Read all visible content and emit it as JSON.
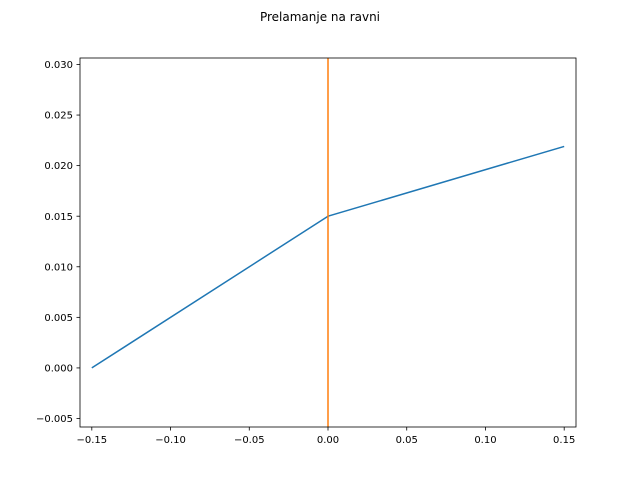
{
  "chart_data": {
    "type": "line",
    "title": "Prelamanje na ravni",
    "xlabel": "",
    "ylabel": "",
    "xlim": [
      -0.1575,
      0.1575
    ],
    "ylim": [
      -0.00584,
      0.03064
    ],
    "x_ticks": [
      -0.15,
      -0.1,
      -0.05,
      0.0,
      0.05,
      0.1,
      0.15
    ],
    "x_tick_labels": [
      "−0.15",
      "−0.10",
      "−0.05",
      "0.00",
      "0.05",
      "0.10",
      "0.15"
    ],
    "y_ticks": [
      -0.005,
      0.0,
      0.005,
      0.01,
      0.015,
      0.02,
      0.025,
      0.03
    ],
    "y_tick_labels": [
      "−0.005",
      "0.000",
      "0.005",
      "0.010",
      "0.015",
      "0.020",
      "0.025",
      "0.030"
    ],
    "grid": false,
    "legend": "none",
    "series": [
      {
        "color": "#1f77b4",
        "x": [
          -0.15,
          0.0,
          0.15
        ],
        "y": [
          0.0,
          0.015,
          0.0219
        ]
      },
      {
        "color": "#ff7f0e",
        "x": [
          0.0,
          0.0
        ],
        "y": [
          -0.00584,
          0.03064
        ]
      }
    ]
  }
}
